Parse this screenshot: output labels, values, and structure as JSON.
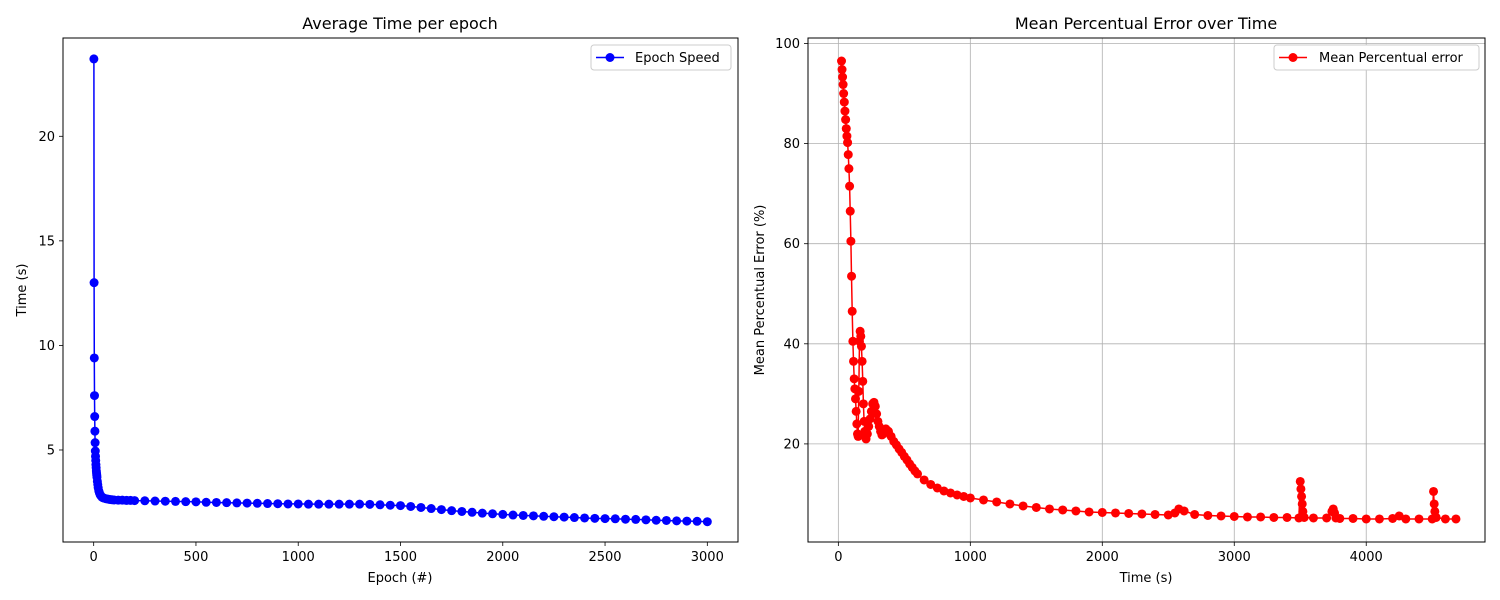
{
  "chart_data": [
    {
      "type": "line",
      "title": "Average Time per epoch",
      "xlabel": "Epoch (#)",
      "ylabel": "Time (s)",
      "xlim": [
        -150,
        3150
      ],
      "ylim": [
        0.6,
        24.7
      ],
      "xticks": [
        0,
        500,
        1000,
        1500,
        2000,
        2500,
        3000
      ],
      "yticks": [
        5,
        10,
        15,
        20
      ],
      "grid": false,
      "legend_position": "upper right",
      "series": [
        {
          "name": "Epoch Speed",
          "color": "#0000ff",
          "marker": "circle",
          "x": [
            1,
            2,
            3,
            4,
            5,
            6,
            7,
            8,
            9,
            10,
            11,
            12,
            13,
            14,
            15,
            16,
            18,
            20,
            22,
            25,
            28,
            32,
            36,
            40,
            45,
            50,
            60,
            70,
            80,
            90,
            100,
            120,
            140,
            160,
            180,
            200,
            250,
            300,
            350,
            400,
            450,
            500,
            550,
            600,
            650,
            700,
            750,
            800,
            850,
            900,
            950,
            1000,
            1050,
            1100,
            1150,
            1200,
            1250,
            1300,
            1350,
            1400,
            1450,
            1500,
            1550,
            1600,
            1650,
            1700,
            1750,
            1800,
            1850,
            1900,
            1950,
            2000,
            2050,
            2100,
            2150,
            2200,
            2250,
            2300,
            2350,
            2400,
            2450,
            2500,
            2550,
            2600,
            2650,
            2700,
            2750,
            2800,
            2850,
            2900,
            2950,
            3000
          ],
          "y": [
            23.7,
            13.0,
            9.4,
            7.6,
            6.6,
            5.9,
            5.35,
            4.95,
            4.7,
            4.5,
            4.3,
            4.15,
            4.0,
            3.9,
            3.8,
            3.7,
            3.5,
            3.35,
            3.2,
            3.05,
            2.95,
            2.85,
            2.8,
            2.75,
            2.72,
            2.7,
            2.67,
            2.65,
            2.63,
            2.62,
            2.61,
            2.6,
            2.6,
            2.59,
            2.59,
            2.58,
            2.57,
            2.56,
            2.55,
            2.54,
            2.53,
            2.52,
            2.5,
            2.49,
            2.48,
            2.47,
            2.46,
            2.45,
            2.44,
            2.43,
            2.42,
            2.42,
            2.41,
            2.41,
            2.41,
            2.41,
            2.41,
            2.41,
            2.4,
            2.38,
            2.36,
            2.34,
            2.3,
            2.25,
            2.2,
            2.15,
            2.1,
            2.06,
            2.02,
            1.98,
            1.95,
            1.92,
            1.89,
            1.87,
            1.85,
            1.83,
            1.81,
            1.79,
            1.77,
            1.75,
            1.73,
            1.72,
            1.71,
            1.69,
            1.68,
            1.66,
            1.64,
            1.63,
            1.61,
            1.6,
            1.59,
            1.57
          ]
        }
      ]
    },
    {
      "type": "line",
      "title": "Mean Percentual Error over Time",
      "xlabel": "Time (s)",
      "ylabel": "Mean Percentual Error (%)",
      "xlim": [
        -230,
        4900
      ],
      "ylim": [
        0.4,
        101.1
      ],
      "xticks": [
        0,
        1000,
        2000,
        3000,
        4000
      ],
      "yticks": [
        20,
        40,
        60,
        80,
        100
      ],
      "grid": true,
      "legend_position": "upper right",
      "series": [
        {
          "name": "Mean Percentual error",
          "color": "#ff0000",
          "marker": "circle",
          "x": [
            24,
            28,
            32,
            36,
            40,
            45,
            50,
            55,
            60,
            65,
            70,
            75,
            80,
            85,
            90,
            95,
            100,
            105,
            110,
            115,
            120,
            125,
            130,
            135,
            140,
            145,
            150,
            155,
            160,
            165,
            170,
            175,
            180,
            185,
            190,
            195,
            200,
            205,
            210,
            220,
            230,
            240,
            250,
            260,
            270,
            280,
            290,
            300,
            310,
            320,
            330,
            340,
            350,
            360,
            380,
            400,
            420,
            440,
            460,
            480,
            500,
            520,
            540,
            560,
            580,
            600,
            650,
            700,
            750,
            800,
            850,
            900,
            950,
            1000,
            1100,
            1200,
            1300,
            1400,
            1500,
            1600,
            1700,
            1800,
            1900,
            2000,
            2100,
            2200,
            2300,
            2400,
            2500,
            2550,
            2580,
            2620,
            2700,
            2800,
            2900,
            3000,
            3100,
            3200,
            3300,
            3400,
            3490,
            3500,
            3505,
            3510,
            3515,
            3520,
            3530,
            3600,
            3700,
            3740,
            3750,
            3760,
            3770,
            3800,
            3900,
            4000,
            4100,
            4200,
            4250,
            4300,
            4400,
            4500,
            4510,
            4515,
            4520,
            4530,
            4600,
            4680
          ],
          "y": [
            96.5,
            94.8,
            93.3,
            91.8,
            90.0,
            88.3,
            86.5,
            84.8,
            83.0,
            81.5,
            80.2,
            77.8,
            75.0,
            71.5,
            66.5,
            60.5,
            53.5,
            46.5,
            40.5,
            36.5,
            33.0,
            31.0,
            29.0,
            26.5,
            24.0,
            22.0,
            21.5,
            30.5,
            40.5,
            42.5,
            41.5,
            39.5,
            36.5,
            32.5,
            28.0,
            24.5,
            22.5,
            21.5,
            21.0,
            22.0,
            23.5,
            25.0,
            26.5,
            28.0,
            28.3,
            27.5,
            26.0,
            24.5,
            23.5,
            22.5,
            21.8,
            22.0,
            22.5,
            23.0,
            22.5,
            21.5,
            20.5,
            19.8,
            19.0,
            18.3,
            17.5,
            16.8,
            16.0,
            15.3,
            14.6,
            14.0,
            12.8,
            11.9,
            11.2,
            10.6,
            10.2,
            9.8,
            9.5,
            9.2,
            8.8,
            8.4,
            8.0,
            7.6,
            7.3,
            7.0,
            6.8,
            6.6,
            6.4,
            6.3,
            6.2,
            6.1,
            6.0,
            5.9,
            5.8,
            6.2,
            7.0,
            6.6,
            5.9,
            5.7,
            5.6,
            5.5,
            5.4,
            5.4,
            5.3,
            5.3,
            5.2,
            12.5,
            11.0,
            9.5,
            8.0,
            6.5,
            5.3,
            5.2,
            5.2,
            6.5,
            7.0,
            6.2,
            5.2,
            5.1,
            5.1,
            5.0,
            5.0,
            5.1,
            5.6,
            5.0,
            5.0,
            5.0,
            10.5,
            8.0,
            6.5,
            5.3,
            5.0,
            5.0
          ]
        }
      ]
    }
  ]
}
